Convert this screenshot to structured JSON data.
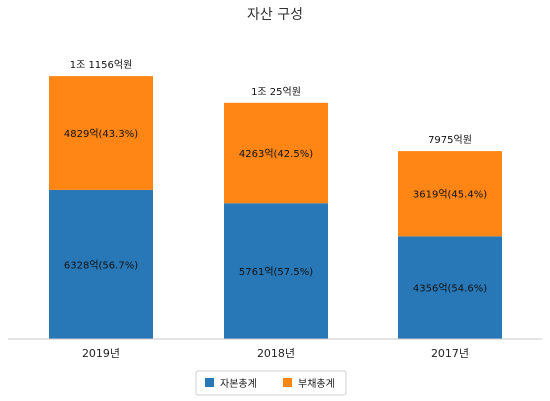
{
  "chart_data": {
    "type": "bar",
    "stacked": true,
    "title": "자산 구성",
    "categories": [
      "2019년",
      "2018년",
      "2017년"
    ],
    "series": [
      {
        "name": "자본총계",
        "color": "#2878b8",
        "values": [
          6328,
          5761,
          4356
        ],
        "labels": [
          "6328억(56.7%)",
          "5761억(57.5%)",
          "4356억(54.6%)"
        ]
      },
      {
        "name": "부채총계",
        "color": "#ff8614",
        "values": [
          4829,
          4263,
          3619
        ],
        "labels": [
          "4829억(43.3%)",
          "4263억(42.5%)",
          "3619억(45.4%)"
        ]
      }
    ],
    "totals": [
      11157,
      10024,
      7975
    ],
    "total_labels": [
      "1조 1156억원",
      "1조 25억원",
      "7975억원"
    ],
    "ylim": [
      0,
      12690
    ],
    "grid": false,
    "legend_position": "bottom"
  }
}
